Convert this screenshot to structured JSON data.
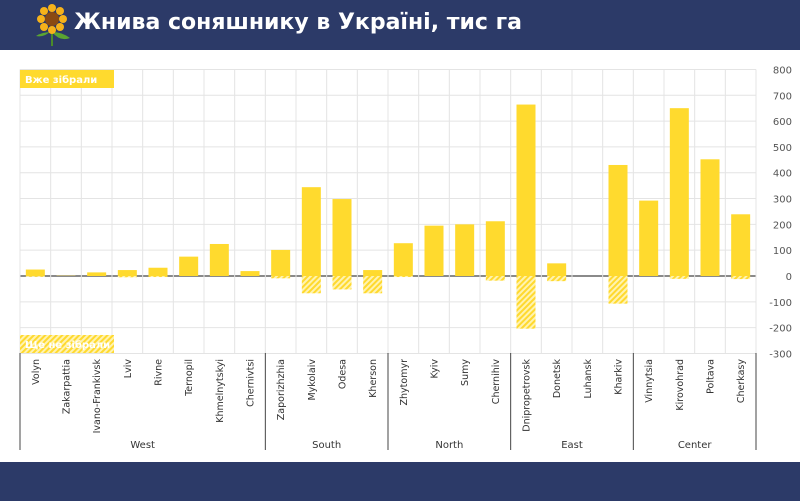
{
  "header": {
    "title": "Жнива соняшнику в Україні, тис га",
    "icon": "sunflower-icon"
  },
  "colors": {
    "header": "#2c3a68",
    "harvested": "#ffda2e",
    "remaining": "#ffe36b"
  },
  "chart_data": {
    "type": "bar",
    "title": "Жнива соняшнику в Україні, тис га",
    "ylim": [
      -300,
      800
    ],
    "yticks": [
      800,
      700,
      600,
      500,
      400,
      300,
      200,
      100,
      0,
      -100,
      -200,
      -300
    ],
    "grid": true,
    "legend": [
      {
        "label": "Вже зібрали",
        "position": "top-left"
      },
      {
        "label": "Ще не зібрали",
        "position": "bottom-left"
      }
    ],
    "categories": [
      "Volyn",
      "Zakarpattia",
      "Ivano-Frankivsk",
      "Lviv",
      "Rivne",
      "Ternopil",
      "Khmelnytskyi",
      "Chernivtsi",
      "Zaporizhzhia",
      "Mykolaiv",
      "Odesa",
      "Kherson",
      "Zhytomyr",
      "Kyiv",
      "Sumy",
      "Chernihiv",
      "Dnipropetrovsk",
      "Donetsk",
      "Luhansk",
      "Kharkiv",
      "Vinnytsia",
      "Kirovohrad",
      "Poltava",
      "Cherkasy"
    ],
    "groups": [
      {
        "name": "West",
        "count": 8
      },
      {
        "name": "South",
        "count": 4
      },
      {
        "name": "North",
        "count": 4
      },
      {
        "name": "East",
        "count": 4
      },
      {
        "name": "Center",
        "count": 4
      }
    ],
    "series": [
      {
        "name": "Вже зібрали",
        "values": [
          25,
          1,
          14,
          23,
          32,
          75,
          124,
          19,
          101,
          344,
          298,
          23,
          127,
          195,
          200,
          212,
          664,
          49,
          0,
          430,
          292,
          650,
          452,
          239
        ]
      },
      {
        "name": "Ще не зібрали",
        "values": [
          -3,
          0,
          0,
          -5,
          -4,
          0,
          0,
          0,
          -9,
          -67,
          -52,
          -67,
          -4,
          0,
          0,
          -18,
          -204,
          -20,
          0,
          -107,
          0,
          -11,
          0,
          -12
        ]
      }
    ]
  }
}
